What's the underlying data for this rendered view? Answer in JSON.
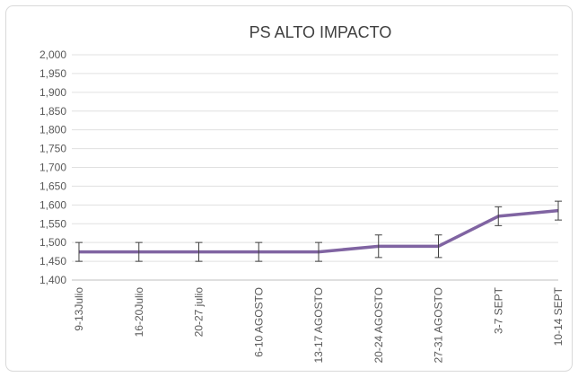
{
  "chart_data": {
    "type": "line",
    "title": "PS ALTO IMPACTO",
    "categories": [
      "9-13Julio",
      "16-20Julio",
      "20-27 julio",
      "6-10 AGOSTO",
      "13-17 AGOSTO",
      "20-24 AGOSTO",
      "27-31 AGOSTO",
      "3-7 SEPT",
      "10-14 SEPT"
    ],
    "values": [
      1475,
      1475,
      1475,
      1475,
      1475,
      1490,
      1490,
      1570,
      1585
    ],
    "errors": [
      25,
      25,
      25,
      25,
      25,
      30,
      30,
      25,
      25
    ],
    "color": "#8064a2",
    "ylim": [
      1400,
      2000
    ],
    "yticks": [
      {
        "value": 1400,
        "label": "1,400"
      },
      {
        "value": 1450,
        "label": "1,450"
      },
      {
        "value": 1500,
        "label": "1,500"
      },
      {
        "value": 1550,
        "label": "1,550"
      },
      {
        "value": 1600,
        "label": "1,600"
      },
      {
        "value": 1650,
        "label": "1,650"
      },
      {
        "value": 1700,
        "label": "1,700"
      },
      {
        "value": 1750,
        "label": "1,750"
      },
      {
        "value": 1800,
        "label": "1,800"
      },
      {
        "value": 1850,
        "label": "1,850"
      },
      {
        "value": 1900,
        "label": "1,900"
      },
      {
        "value": 1950,
        "label": "1,950"
      },
      {
        "value": 2000,
        "label": "2,000"
      }
    ],
    "grid": true
  }
}
